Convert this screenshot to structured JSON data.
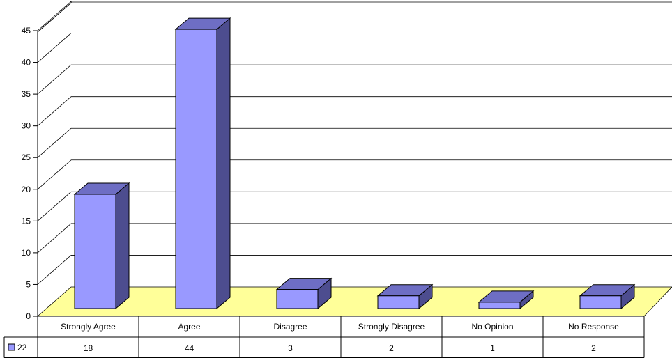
{
  "chart_data": {
    "type": "bar",
    "categories": [
      "Strongly Agree",
      "Agree",
      "Disagree",
      "Strongly Disagree",
      "No Opinion",
      "No Response"
    ],
    "series": [
      {
        "name": "22",
        "values": [
          18,
          44,
          3,
          2,
          1,
          2
        ]
      }
    ],
    "title": "",
    "xlabel": "",
    "ylabel": "",
    "ylim": [
      0,
      45
    ],
    "yticks": [
      0,
      5,
      10,
      15,
      20,
      25,
      30,
      35,
      40,
      45
    ],
    "grid": true,
    "three_d": true,
    "data_table": true,
    "colors": {
      "bar_front": "#9999ff",
      "bar_side": "#4d4d8f",
      "bar_top": "#6e6ec4",
      "floor": "#ffff99",
      "grid": "#000000"
    }
  }
}
